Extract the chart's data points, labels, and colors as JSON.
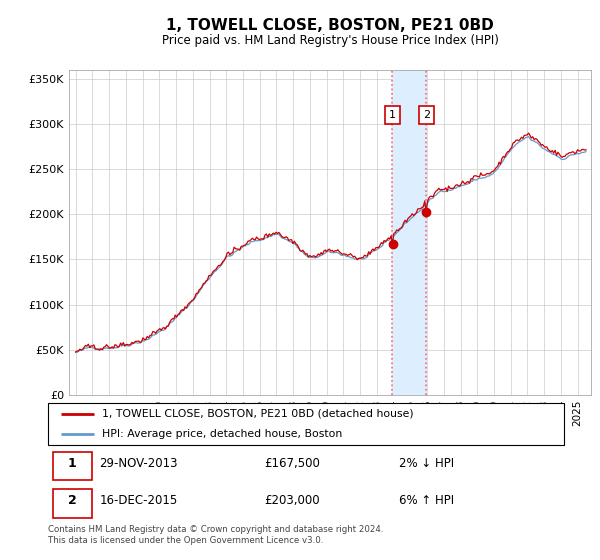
{
  "title": "1, TOWELL CLOSE, BOSTON, PE21 0BD",
  "subtitle": "Price paid vs. HM Land Registry's House Price Index (HPI)",
  "footer": "Contains HM Land Registry data © Crown copyright and database right 2024.\nThis data is licensed under the Open Government Licence v3.0.",
  "legend_line1": "1, TOWELL CLOSE, BOSTON, PE21 0BD (detached house)",
  "legend_line2": "HPI: Average price, detached house, Boston",
  "transactions": [
    {
      "id": 1,
      "date": "29-NOV-2013",
      "price": 167500,
      "note": "2% ↓ HPI"
    },
    {
      "id": 2,
      "date": "16-DEC-2015",
      "price": 203000,
      "note": "6% ↑ HPI"
    }
  ],
  "transaction_years": [
    2013.92,
    2015.96
  ],
  "ylim": [
    0,
    360000
  ],
  "yticks": [
    0,
    50000,
    100000,
    150000,
    200000,
    250000,
    300000,
    350000
  ],
  "ytick_labels": [
    "£0",
    "£50K",
    "£100K",
    "£150K",
    "£200K",
    "£250K",
    "£300K",
    "£350K"
  ],
  "color_red": "#cc0000",
  "color_blue": "#6699cc",
  "color_shade": "#ddeeff",
  "xlim_left": 1994.6,
  "xlim_right": 2025.8
}
